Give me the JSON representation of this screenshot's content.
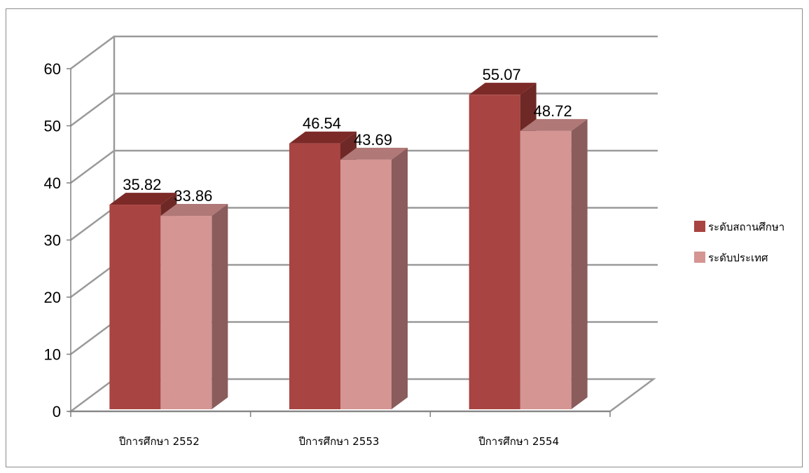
{
  "colors": {
    "series_front": [
      "#a84441",
      "#d49593"
    ],
    "series_top": [
      "#7c2a28",
      "#b07876"
    ],
    "series_side": [
      "#6e2826",
      "#8a5c5b"
    ],
    "grid": "#9a9a9a",
    "axis": "#808080"
  },
  "chart_data": {
    "type": "bar",
    "style": "3d clustered column",
    "categories": [
      "ปีการศึกษา 2552",
      "ปีการศึกษา 2553",
      "ปีการศึกษา 2554"
    ],
    "series": [
      {
        "name": "ระดับสถานศึกษา",
        "values": [
          35.82,
          46.54,
          55.07
        ],
        "labels": [
          "35.82",
          "46.54",
          "55.07"
        ]
      },
      {
        "name": "ระดับประเทศ",
        "values": [
          33.86,
          43.69,
          48.72
        ],
        "labels": [
          "33.86",
          "43.69",
          "48.72"
        ]
      }
    ],
    "y_ticks": [
      "0",
      "10",
      "20",
      "30",
      "40",
      "50",
      "60"
    ],
    "ylim": [
      0,
      60
    ],
    "grid": true,
    "legend_position": "right"
  }
}
